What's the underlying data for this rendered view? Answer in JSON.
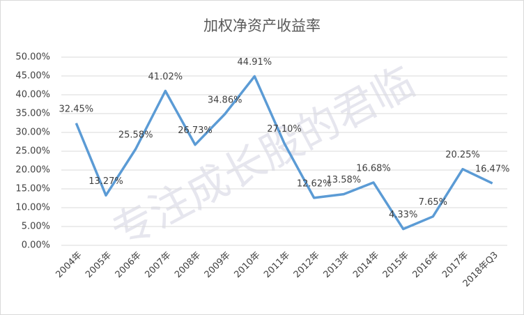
{
  "chart_data": {
    "type": "line",
    "title": "加权净资产收益率",
    "watermark": "专注成长股的君临",
    "categories": [
      "2004年",
      "2005年",
      "2006年",
      "2007年",
      "2008年",
      "2009年",
      "2010年",
      "2011年",
      "2012年",
      "2013年",
      "2014年",
      "2015年",
      "2016年",
      "2017年",
      "2018年Q3"
    ],
    "values": [
      32.45,
      13.27,
      25.58,
      41.02,
      26.73,
      34.86,
      44.91,
      27.1,
      12.62,
      13.58,
      16.68,
      4.33,
      7.65,
      20.25,
      16.47
    ],
    "value_labels": [
      "32.45%",
      "13.27%",
      "25.58%",
      "41.02%",
      "26.73%",
      "34.86%",
      "44.91%",
      "27.10%",
      "12.62%",
      "13.58%",
      "16.68%",
      "4.33%",
      "7.65%",
      "20.25%",
      "16.47%"
    ],
    "color": "#5b9bd5",
    "ylim": [
      0,
      50
    ],
    "yticks": [
      {
        "value": 0,
        "label": "0.00%"
      },
      {
        "value": 5,
        "label": "5.00%"
      },
      {
        "value": 10,
        "label": "10.00%"
      },
      {
        "value": 15,
        "label": "15.00%"
      },
      {
        "value": 20,
        "label": "20.00%"
      },
      {
        "value": 25,
        "label": "25.00%"
      },
      {
        "value": 30,
        "label": "30.00%"
      },
      {
        "value": 35,
        "label": "35.00%"
      },
      {
        "value": 40,
        "label": "40.00%"
      },
      {
        "value": 45,
        "label": "45.00%"
      },
      {
        "value": 50,
        "label": "50.00%"
      }
    ],
    "grid": true
  }
}
